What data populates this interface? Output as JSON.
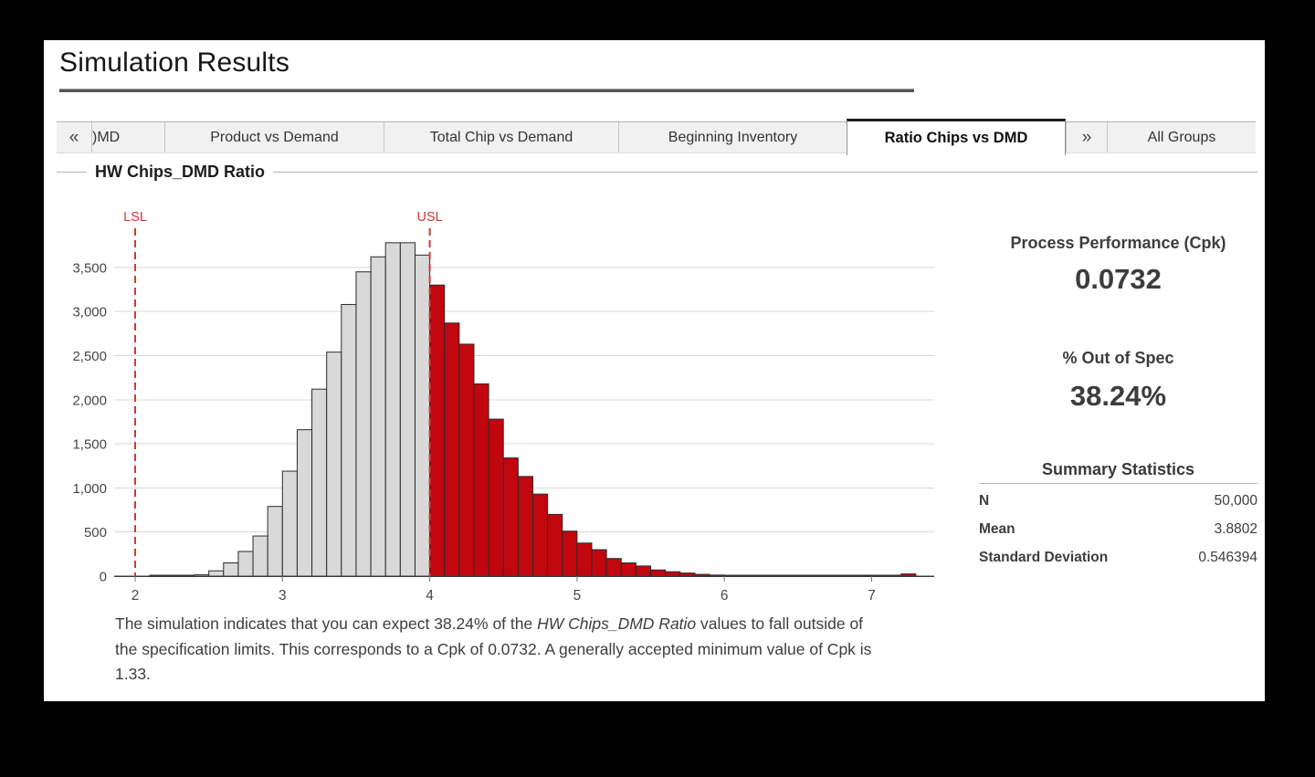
{
  "window": {
    "title": "Simulation Results"
  },
  "tabs": {
    "scroll_left": "«",
    "scroll_right": "»",
    "items": [
      {
        "label": ")MD",
        "active": false
      },
      {
        "label": "Product vs Demand",
        "active": false
      },
      {
        "label": "Total Chip vs Demand",
        "active": false
      },
      {
        "label": "Beginning Inventory",
        "active": false
      },
      {
        "label": "Ratio Chips vs DMD",
        "active": true
      },
      {
        "label": "All Groups",
        "active": false
      }
    ]
  },
  "performance": {
    "title": "Process Performance (Cpk)",
    "value": "0.0732"
  },
  "out_of_spec": {
    "title": "% Out of Spec",
    "value": "38.24%"
  },
  "summary": {
    "title": "Summary Statistics",
    "rows": [
      {
        "label": "N",
        "value": "50,000"
      },
      {
        "label": "Mean",
        "value": "3.8802"
      },
      {
        "label": "Standard Deviation",
        "value": "0.546394"
      }
    ]
  },
  "note": {
    "part1": "The simulation indicates that you can expect 38.24% of the ",
    "variable": "HW Chips_DMD Ratio",
    "part2": " values to fall outside of the specification limits. This corresponds to a Cpk of 0.0732. A generally accepted minimum value of Cpk is 1.33."
  },
  "chart_data": {
    "type": "bar",
    "subtype": "histogram",
    "title": "HW Chips_DMD Ratio",
    "xlabel": "",
    "ylabel": "",
    "bin_start": 2.1,
    "bin_width": 0.1,
    "values": [
      2,
      3,
      5,
      15,
      60,
      150,
      280,
      455,
      790,
      1190,
      1660,
      2120,
      2540,
      3080,
      3450,
      3620,
      3780,
      3780,
      3640,
      3300,
      2870,
      2630,
      2180,
      1780,
      1340,
      1130,
      930,
      700,
      510,
      375,
      300,
      200,
      150,
      115,
      70,
      50,
      35,
      20,
      12,
      10,
      8,
      6,
      5,
      4,
      4,
      3,
      3,
      2,
      2,
      2,
      2,
      25
    ],
    "lsl": 2,
    "usl": 4,
    "lsl_label": "LSL",
    "usl_label": "USL",
    "xlim": [
      1.85,
      7.45
    ],
    "ylim": [
      0,
      3800
    ],
    "grid": true,
    "y_ticks": [
      "0",
      "500",
      "1,000",
      "1,500",
      "2,000",
      "2,500",
      "3,000",
      "3,500"
    ],
    "x_ticks": [
      "2",
      "3",
      "4",
      "5",
      "6",
      "7"
    ],
    "colors": {
      "in_spec": "#d9d9d9",
      "out_spec": "#c1060e",
      "bar_border": "#2b2b2b",
      "limit_line": "#cc3b35",
      "gridline": "#d8d8d8",
      "axis": "#3a3a3a"
    }
  }
}
